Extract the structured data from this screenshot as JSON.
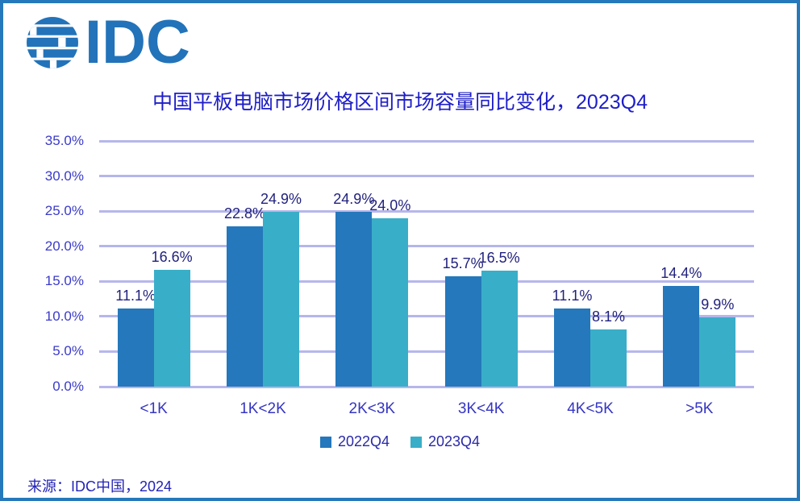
{
  "logo": {
    "text": "IDC"
  },
  "title": "中国平板电脑市场价格区间市场容量同比变化，2023Q4",
  "source": "来源：IDC中国，2024",
  "colors": {
    "frame": "#2478BB",
    "logo": "#2273B9",
    "title_text": "#1E1EC8",
    "axis_label": "#3A3ACA",
    "value_label": "#21217E",
    "gridline": "#B6B6EC",
    "series_2022q4": "#2478BB",
    "series_2023q4": "#39AEC8"
  },
  "chart_data": {
    "type": "bar",
    "title": "中国平板电脑市场价格区间市场容量同比变化，2023Q4",
    "categories": [
      "<1K",
      "1K<2K",
      "2K<3K",
      "3K<4K",
      "4K<5K",
      ">5K"
    ],
    "series": [
      {
        "name": "2022Q4",
        "color": "#2478BB",
        "values": [
          11.1,
          22.8,
          24.9,
          15.7,
          11.1,
          14.4
        ]
      },
      {
        "name": "2023Q4",
        "color": "#39AEC8",
        "values": [
          16.6,
          24.9,
          24.0,
          16.5,
          8.1,
          9.9
        ]
      }
    ],
    "xlabel": "",
    "ylabel": "",
    "ylim": [
      0,
      35
    ],
    "yticks": [
      0,
      5,
      10,
      15,
      20,
      25,
      30,
      35
    ],
    "ytick_suffix": "%",
    "grid": true,
    "legend_position": "bottom",
    "value_labels_shown": true
  }
}
